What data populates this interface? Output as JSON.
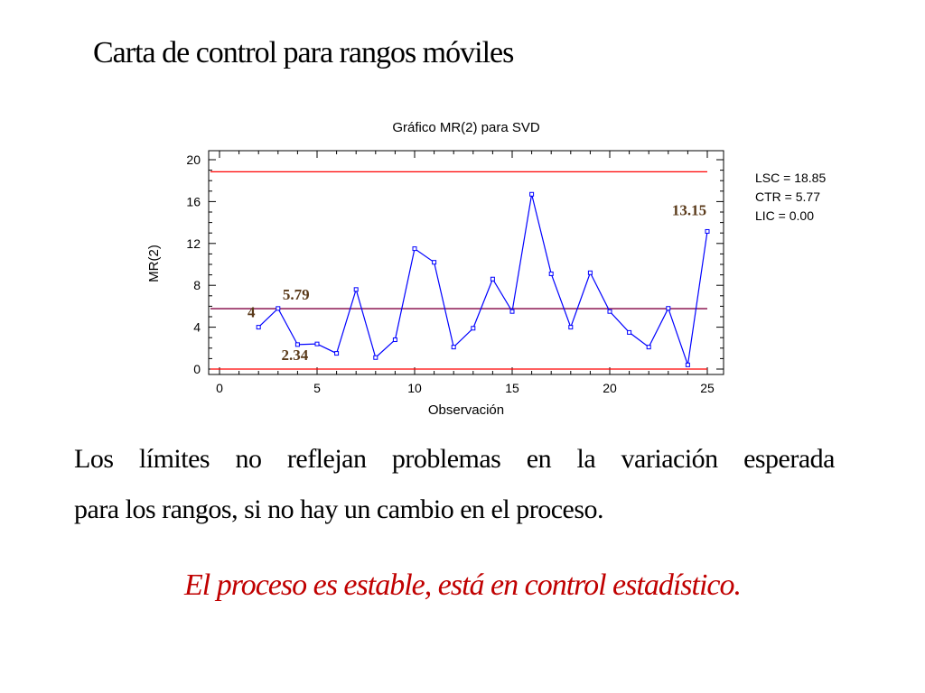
{
  "slide": {
    "title": "Carta  de control para rangos móviles",
    "body_line1": "Los límites no reflejan problemas en la variación esperada",
    "body_line2": "para los rangos, si no hay un cambio en el proceso.",
    "conclusion": "El proceso es estable, está en control estadístico.",
    "conclusion_color": "#c00000"
  },
  "chart_data": {
    "type": "line",
    "title": "Gráfico MR(2) para SVD",
    "xlabel": "Observación",
    "ylabel": "MR(2)",
    "xlim": [
      0,
      25
    ],
    "ylim": [
      0,
      20
    ],
    "xticks": [
      0,
      5,
      10,
      15,
      20,
      25
    ],
    "yticks": [
      0,
      4,
      8,
      12,
      16,
      20
    ],
    "x": [
      2,
      3,
      4,
      5,
      6,
      7,
      8,
      9,
      10,
      11,
      12,
      13,
      14,
      15,
      16,
      17,
      18,
      19,
      20,
      21,
      22,
      23,
      24,
      25
    ],
    "series": [
      {
        "color": "#0000ff",
        "values": [
          4.0,
          5.79,
          2.34,
          2.4,
          1.5,
          7.6,
          1.1,
          2.8,
          11.5,
          10.2,
          2.1,
          3.9,
          8.6,
          5.5,
          16.7,
          9.1,
          4.0,
          9.2,
          5.5,
          3.5,
          2.1,
          5.8,
          0.4,
          13.15
        ]
      }
    ],
    "control_lines": [
      {
        "label": "LSC = 18.85",
        "value": 18.85,
        "color": "#ff0000"
      },
      {
        "label": "CTR = 5.77",
        "value": 5.77,
        "color": "#800040"
      },
      {
        "label": "LIC = 0.00",
        "value": 0.0,
        "color": "#ff0000"
      }
    ],
    "annotations": [
      {
        "text": "4",
        "x": 2,
        "y": 4.0,
        "color": "#5a3a1a"
      },
      {
        "text": "5.79",
        "x": 3,
        "y": 5.79,
        "color": "#5a3a1a"
      },
      {
        "text": "2.34",
        "x": 4,
        "y": 2.34,
        "color": "#5a3a1a"
      },
      {
        "text": "13.15",
        "x": 25,
        "y": 13.15,
        "color": "#5a3a1a"
      }
    ],
    "grid": false,
    "legend_position": "right"
  }
}
